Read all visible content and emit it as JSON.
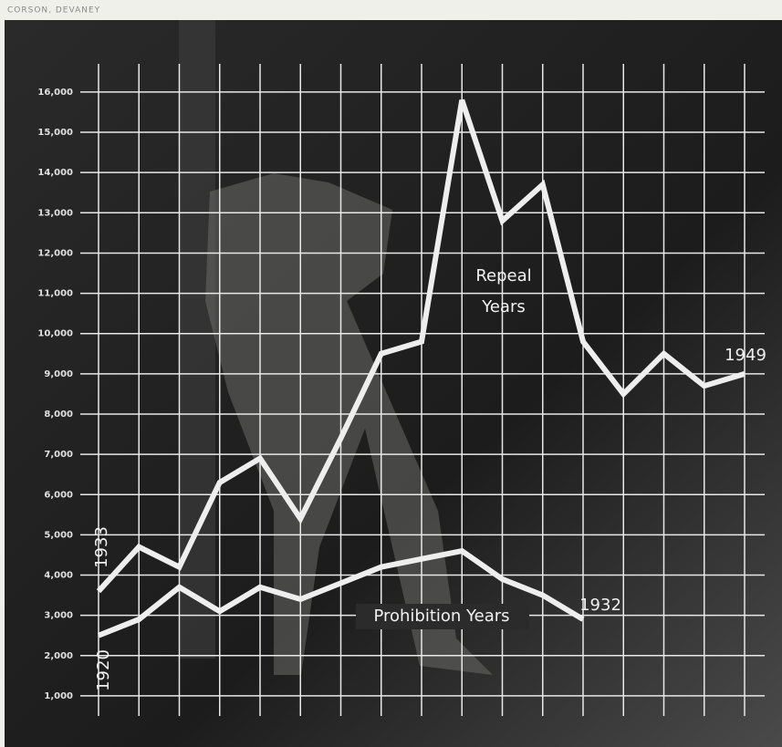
{
  "chart_data": {
    "type": "line",
    "credit": "CORSON, DEVANEY",
    "categories": [
      null,
      null,
      null,
      null,
      null,
      null,
      null,
      null,
      null,
      null,
      null,
      null,
      null,
      null,
      null,
      null,
      null
    ],
    "series": [
      {
        "name": "Repeal Years",
        "color": "#eeeeee",
        "values": [
          3600,
          4700,
          4200,
          6300,
          6900,
          5400,
          7400,
          9500,
          9800,
          15800,
          12800,
          13700,
          9800,
          8500,
          9500,
          8700,
          9000
        ]
      },
      {
        "name": "Prohibition Years",
        "color": "#eeeeee",
        "values": [
          2500,
          2900,
          3700,
          3100,
          3700,
          3400,
          3800,
          4200,
          4400,
          4600,
          3900,
          3500,
          2900,
          null,
          null,
          null,
          null
        ]
      }
    ],
    "annotations": [
      "1933",
      "1920",
      "1932",
      "1949"
    ],
    "ylim": [
      500,
      16700
    ],
    "yticks": [
      {
        "value": 1000,
        "label": "1,000"
      },
      {
        "value": 2000,
        "label": "2,000"
      },
      {
        "value": 3000,
        "label": "3,000"
      },
      {
        "value": 4000,
        "label": "4,000"
      },
      {
        "value": 5000,
        "label": "5,000"
      },
      {
        "value": 6000,
        "label": "6,000"
      },
      {
        "value": 7000,
        "label": "7,000"
      },
      {
        "value": 8000,
        "label": "8,000"
      },
      {
        "value": 9000,
        "label": "9,000"
      },
      {
        "value": 10000,
        "label": "10,000"
      },
      {
        "value": 11000,
        "label": "11,000"
      },
      {
        "value": 12000,
        "label": "12,000"
      },
      {
        "value": 13000,
        "label": "13,000"
      },
      {
        "value": 14000,
        "label": "14,000"
      },
      {
        "value": 15000,
        "label": "15,000"
      },
      {
        "value": 16000,
        "label": "16,000"
      }
    ],
    "grid": true
  }
}
